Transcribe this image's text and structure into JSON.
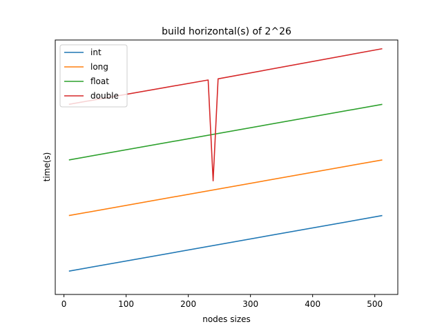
{
  "chart_data": {
    "type": "line",
    "title": "build horizontal(s) of 2^26",
    "xlabel": "nodes sizes",
    "ylabel": "time(s)",
    "xlim": [
      -14,
      537
    ],
    "ylim": [
      0,
      100
    ],
    "xticks": [
      0,
      100,
      200,
      300,
      400,
      500
    ],
    "yticks_visible": false,
    "grid": false,
    "legend_position": "top-left",
    "series": [
      {
        "name": "int",
        "color": "#1f77b4",
        "x": [
          8,
          512
        ],
        "y": [
          5,
          29
        ]
      },
      {
        "name": "long",
        "color": "#ff7f0e",
        "x": [
          8,
          512
        ],
        "y": [
          29,
          53
        ]
      },
      {
        "name": "float",
        "color": "#2ca02c",
        "x": [
          8,
          512
        ],
        "y": [
          53,
          77
        ]
      },
      {
        "name": "double",
        "color": "#d62728",
        "x": [
          8,
          232,
          240,
          248,
          512
        ],
        "y": [
          77,
          87.5,
          44,
          88,
          101
        ]
      }
    ]
  }
}
